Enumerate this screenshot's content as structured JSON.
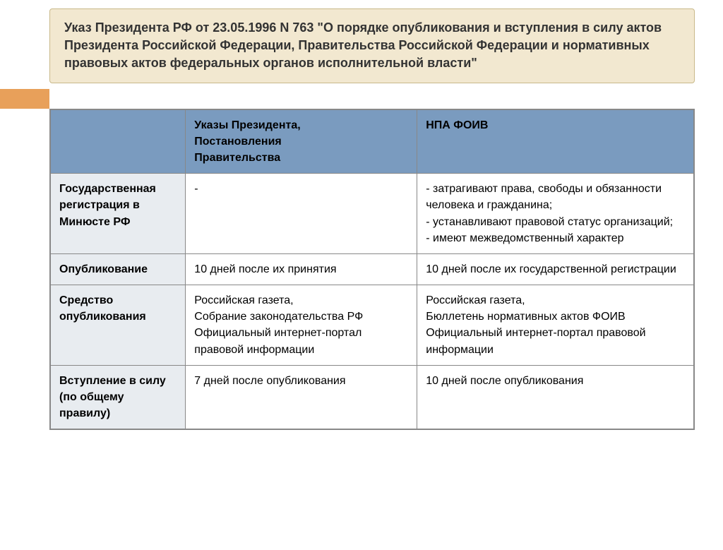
{
  "title": "Указ Президента РФ от 23.05.1996 N 763 \"О порядке опубликования и вступления в силу актов Президента Российской Федерации, Правительства Российской Федерации и нормативных правовых актов федеральных органов исполнительной власти\"",
  "colors": {
    "title_bg": "#f2e8d0",
    "title_border": "#c9b98a",
    "orange_tab": "#e8a05a",
    "header_bg": "#7a9bbf",
    "row_label_bg": "#e8ecf0",
    "cell_border": "#888888",
    "text": "#333333"
  },
  "table": {
    "header": {
      "col0": "",
      "col1_line1": "Указы Президента,",
      "col1_line2": "Постановления",
      "col1_line3": "Правительства",
      "col2": "НПА ФОИВ"
    },
    "rows": [
      {
        "label": "Государственная регистрация в Минюсте РФ",
        "c1": "-",
        "c2": "- затрагивают права, свободы и обязанности человека и гражданина;\n- устанавливают правовой статус организаций;\n- имеют межведомственный характер"
      },
      {
        "label": "Опубликование",
        "c1": "10 дней после их принятия",
        "c2": "10 дней после их государственной регистрации"
      },
      {
        "label": "Средство опубликования",
        "c1": "Российская газета,\nСобрание законодательства РФ\nОфициальный интернет-портал правовой информации",
        "c2": "Российская газета,\nБюллетень нормативных актов ФОИВ\nОфициальный интернет-портал правовой информации"
      },
      {
        "label": "Вступление в силу (по общему правилу)",
        "c1": "7 дней после опубликования",
        "c2": "10 дней после опубликования"
      }
    ]
  }
}
